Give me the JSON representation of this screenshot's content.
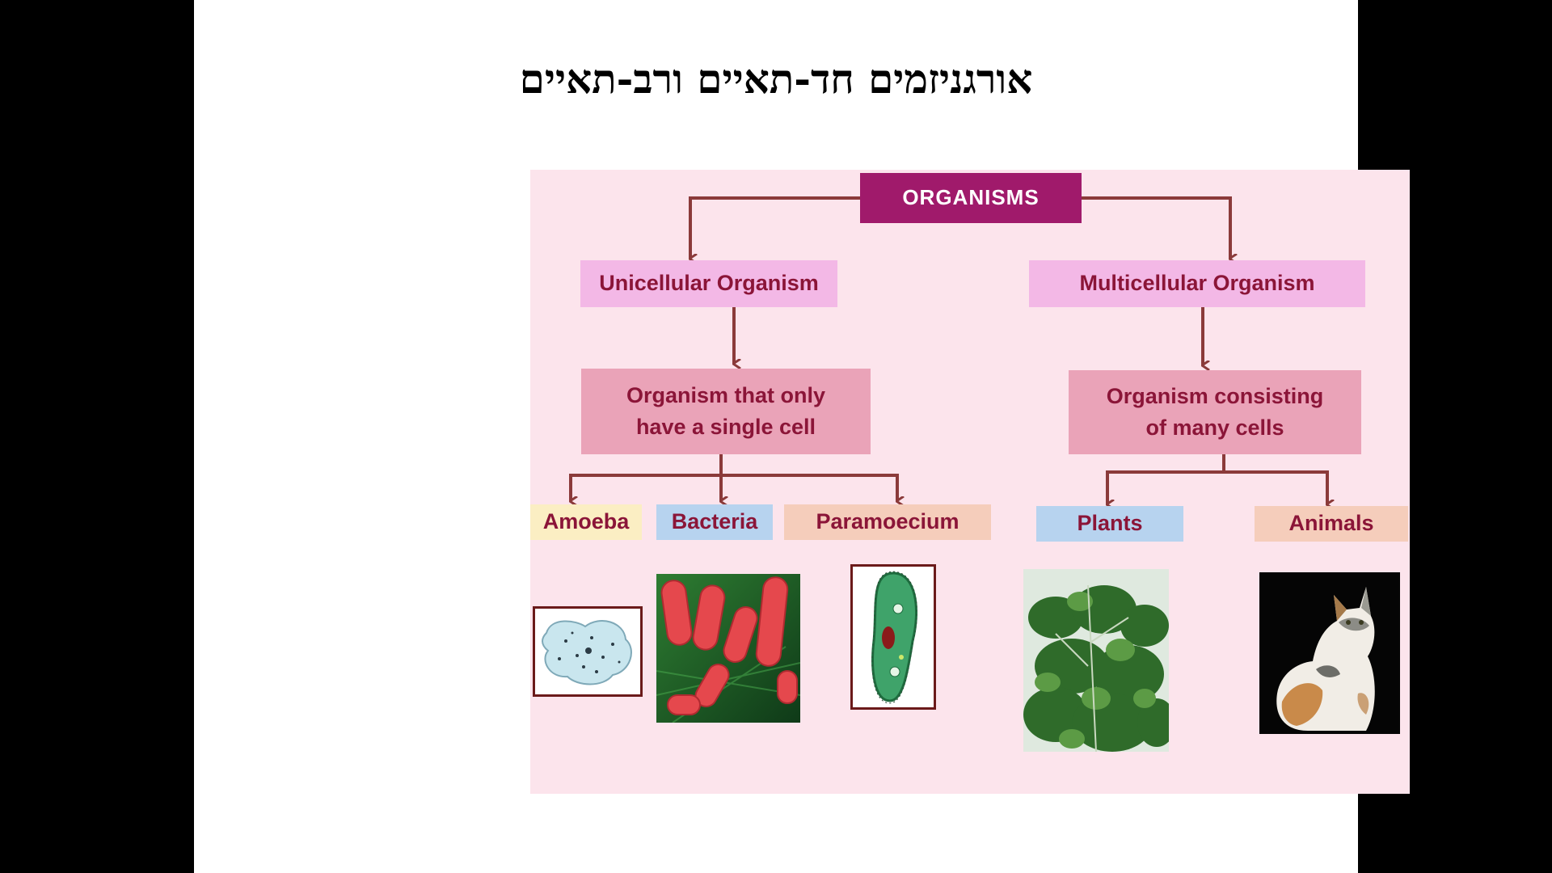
{
  "slide": {
    "title": "אורגניזמים חד-תאיים ורב-תאיים"
  },
  "diagram": {
    "root": "ORGANISMS",
    "unicellular": {
      "label": "Unicellular Organism",
      "definition_line1": "Organism that only",
      "definition_line2": "have a single cell",
      "examples": [
        "Amoeba",
        "Bacteria",
        "Paramoecium"
      ]
    },
    "multicellular": {
      "label": "Multicellular Organism",
      "definition_line1": "Organism consisting",
      "definition_line2": "of many cells",
      "examples": [
        "Plants",
        "Animals"
      ]
    },
    "colors": {
      "root_bg": "#a01a6b",
      "arrow": "#8b3a3a",
      "text": "#8b1538",
      "panel_bg": "#fce4ec"
    }
  }
}
